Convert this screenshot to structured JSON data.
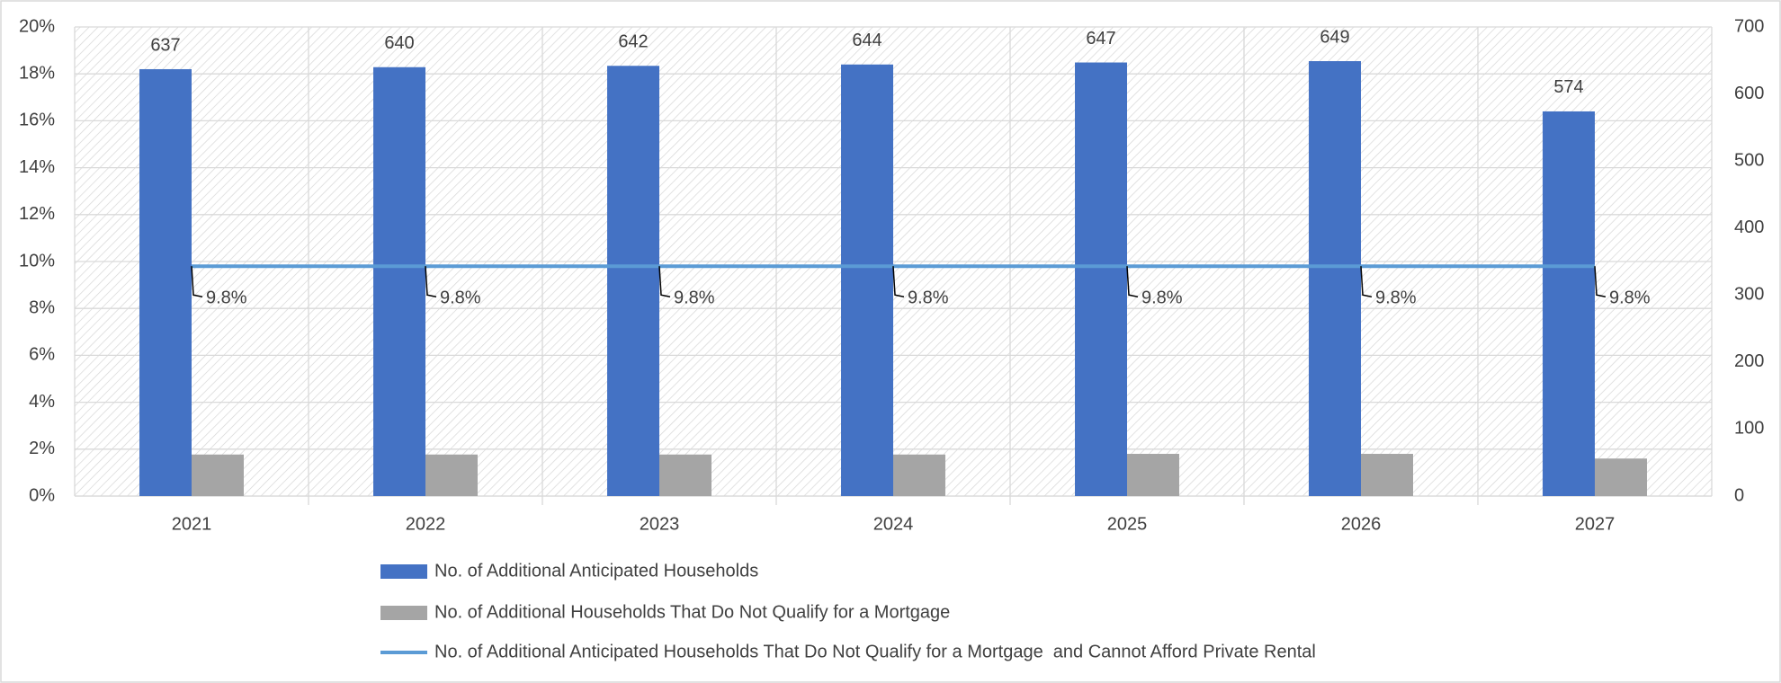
{
  "chart_data": {
    "type": "bar",
    "categories": [
      "2021",
      "2022",
      "2023",
      "2024",
      "2025",
      "2026",
      "2027"
    ],
    "series": [
      {
        "name": "No. of Additional Anticipated Households",
        "type": "bar",
        "axis": "y2",
        "color": "#4472c4",
        "values": [
          637,
          640,
          642,
          644,
          647,
          649,
          574
        ]
      },
      {
        "name": "No. of Additional Households That Do Not Qualify for a Mortgage",
        "type": "bar",
        "axis": "y2",
        "color": "#a5a5a5",
        "values": [
          62,
          62,
          62,
          62,
          63,
          63,
          56
        ]
      },
      {
        "name": "No. of Additional Anticipated Households That Do Not Qualify for a Mortgage  and Cannot Afford Private Rental",
        "type": "line",
        "axis": "y",
        "color": "#5b9bd5",
        "values": [
          9.8,
          9.8,
          9.8,
          9.8,
          9.8,
          9.8,
          9.8
        ],
        "value_labels": [
          "9.8%",
          "9.8%",
          "9.8%",
          "9.8%",
          "9.8%",
          "9.8%",
          "9.8%"
        ]
      }
    ],
    "ylim": [
      0,
      20
    ],
    "yticks": [
      {
        "value": 0,
        "label": "0%"
      },
      {
        "value": 2,
        "label": "2%"
      },
      {
        "value": 4,
        "label": "4%"
      },
      {
        "value": 6,
        "label": "6%"
      },
      {
        "value": 8,
        "label": "8%"
      },
      {
        "value": 10,
        "label": "10%"
      },
      {
        "value": 12,
        "label": "12%"
      },
      {
        "value": 14,
        "label": "14%"
      },
      {
        "value": 16,
        "label": "16%"
      },
      {
        "value": 18,
        "label": "18%"
      },
      {
        "value": 20,
        "label": "20%"
      }
    ],
    "y2lim": [
      0,
      700
    ],
    "y2ticks": [
      0,
      100,
      200,
      300,
      400,
      500,
      600,
      700
    ],
    "grid": true,
    "legend": "bottom"
  }
}
